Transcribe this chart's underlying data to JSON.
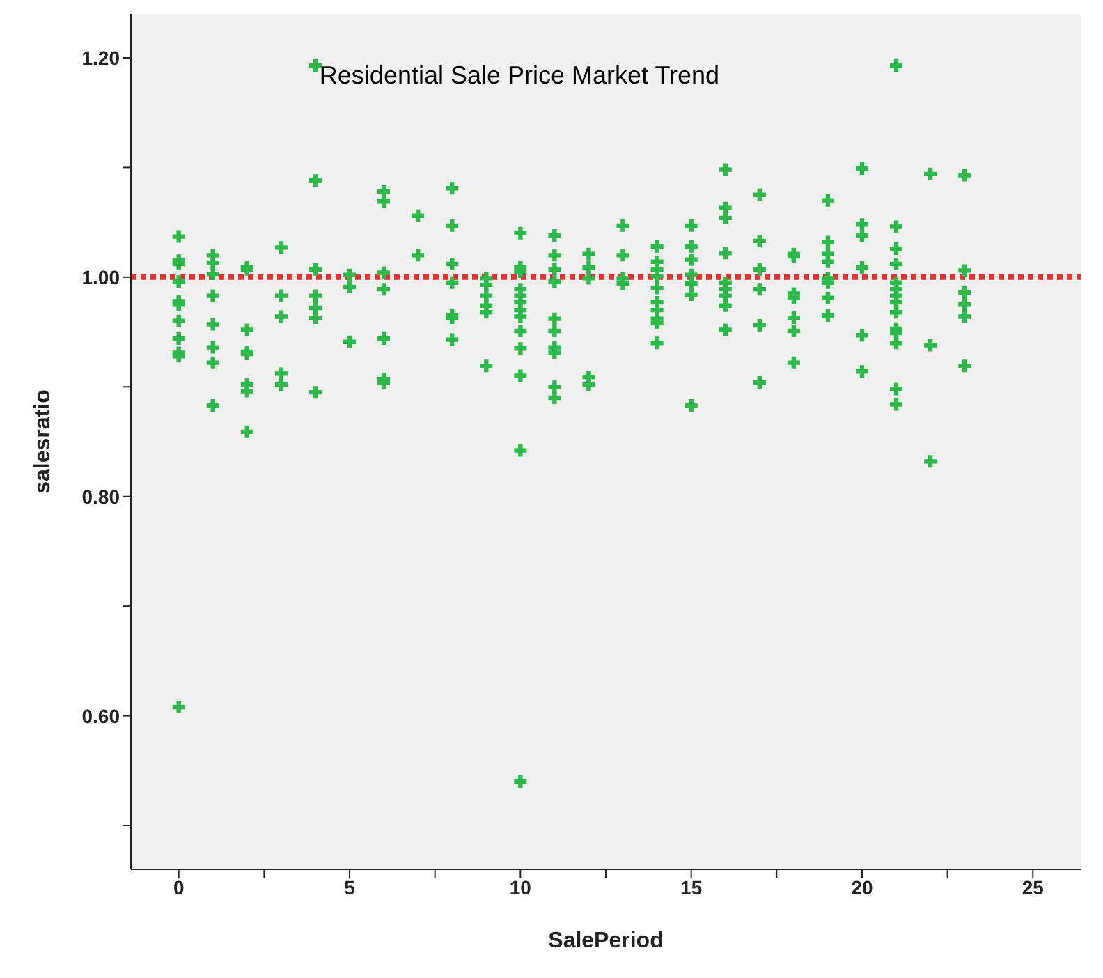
{
  "chart_data": {
    "type": "scatter",
    "title": "Residential Sale Price Market Trend",
    "xlabel": "SalePeriod",
    "ylabel": "salesratio",
    "marker": "cross",
    "xlim": [
      -1.4,
      26.4
    ],
    "xticks": [
      0,
      {
        "value": 2.5,
        "label": null
      },
      5,
      {
        "value": 7.5,
        "label": null
      },
      10,
      {
        "value": 12.5,
        "label": null
      },
      15,
      {
        "value": 17.5,
        "label": null
      },
      20,
      {
        "value": 22.5,
        "label": null
      },
      25
    ],
    "ylim": [
      0.46,
      1.24
    ],
    "yticks": [
      {
        "value": 0.5,
        "label": null
      },
      {
        "value": 0.6,
        "label": "0.60"
      },
      {
        "value": 0.7,
        "label": null
      },
      {
        "value": 0.8,
        "label": "0.80"
      },
      {
        "value": 0.9,
        "label": null
      },
      {
        "value": 1.0,
        "label": "1.00"
      },
      {
        "value": 1.1,
        "label": null
      },
      {
        "value": 1.2,
        "label": "1.20"
      }
    ],
    "ref_lines": [
      {
        "axis": "y",
        "value": 1.0,
        "label": null,
        "color": "#e8302e",
        "line_style": "dotted"
      }
    ],
    "series": [
      {
        "color": "#2db84a",
        "x": [
          0,
          0,
          0,
          0,
          0,
          0,
          0,
          0,
          0,
          0,
          0,
          1,
          1,
          1,
          1,
          1,
          1,
          1,
          1,
          2,
          2,
          2,
          2,
          2,
          2,
          2,
          2,
          3,
          3,
          3,
          3,
          3,
          4,
          4,
          4,
          4,
          4,
          4,
          4,
          5,
          5,
          5,
          6,
          6,
          6,
          6,
          6,
          6,
          6,
          7,
          7,
          8,
          8,
          8,
          8,
          8,
          8,
          8,
          9,
          9,
          9,
          9,
          9,
          9,
          10,
          10,
          10,
          10,
          10,
          10,
          10,
          10,
          10,
          10,
          10,
          10,
          10,
          11,
          11,
          11,
          11,
          11,
          11,
          11,
          11,
          11,
          11,
          12,
          12,
          12,
          12,
          12,
          13,
          13,
          13,
          13,
          14,
          14,
          14,
          14,
          14,
          14,
          14,
          14,
          14,
          14,
          15,
          15,
          15,
          15,
          15,
          15,
          15,
          16,
          16,
          16,
          16,
          16,
          16,
          16,
          16,
          16,
          17,
          17,
          17,
          17,
          17,
          17,
          18,
          18,
          18,
          18,
          18,
          18,
          18,
          19,
          19,
          19,
          19,
          19,
          19,
          19,
          19,
          20,
          20,
          20,
          20,
          20,
          20,
          21,
          21,
          21,
          21,
          21,
          21,
          21,
          21,
          21,
          21,
          21,
          21,
          21,
          21,
          22,
          22,
          22,
          23,
          23,
          23,
          23,
          23,
          23
        ],
        "values": [
          1.037,
          1.015,
          1.012,
          0.996,
          0.978,
          0.975,
          0.96,
          0.944,
          0.931,
          0.928,
          0.608,
          1.02,
          1.013,
          1.003,
          0.983,
          0.957,
          0.936,
          0.922,
          0.883,
          1.009,
          1.007,
          0.952,
          0.932,
          0.93,
          0.902,
          0.896,
          0.859,
          1.027,
          0.983,
          0.964,
          0.912,
          0.902,
          1.193,
          1.088,
          1.007,
          0.983,
          0.972,
          0.963,
          0.895,
          1.002,
          0.991,
          0.941,
          1.078,
          1.069,
          1.004,
          0.989,
          0.944,
          0.907,
          0.904,
          1.056,
          1.02,
          1.081,
          1.047,
          1.012,
          0.995,
          0.965,
          0.963,
          0.943,
          0.999,
          0.993,
          0.983,
          0.974,
          0.968,
          0.919,
          1.04,
          1.009,
          1.005,
          0.989,
          0.983,
          0.977,
          0.97,
          0.964,
          0.951,
          0.935,
          0.91,
          0.842,
          0.54,
          1.038,
          1.02,
          1.007,
          0.996,
          0.962,
          0.951,
          0.936,
          0.931,
          0.9,
          0.89,
          1.021,
          1.009,
          0.999,
          0.909,
          0.902,
          1.047,
          1.02,
          0.999,
          0.994,
          1.028,
          1.014,
          1.007,
          1.001,
          0.99,
          0.977,
          0.97,
          0.962,
          0.958,
          0.94,
          1.047,
          1.028,
          1.016,
          1.002,
          0.994,
          0.984,
          0.883,
          1.098,
          1.063,
          1.054,
          1.022,
          0.995,
          0.989,
          0.983,
          0.974,
          0.952,
          1.075,
          1.033,
          1.007,
          0.989,
          0.956,
          0.904,
          1.021,
          1.019,
          0.985,
          0.981,
          0.963,
          0.951,
          0.922,
          1.07,
          1.032,
          1.021,
          1.014,
          0.999,
          0.995,
          0.981,
          0.965,
          1.099,
          1.048,
          1.038,
          1.009,
          0.947,
          0.914,
          1.193,
          1.046,
          1.026,
          1.012,
          0.995,
          0.989,
          0.983,
          0.977,
          0.968,
          0.953,
          0.949,
          0.94,
          0.898,
          0.884,
          1.094,
          0.938,
          0.832,
          1.093,
          1.006,
          0.986,
          0.975,
          0.964,
          0.919
        ]
      }
    ]
  }
}
